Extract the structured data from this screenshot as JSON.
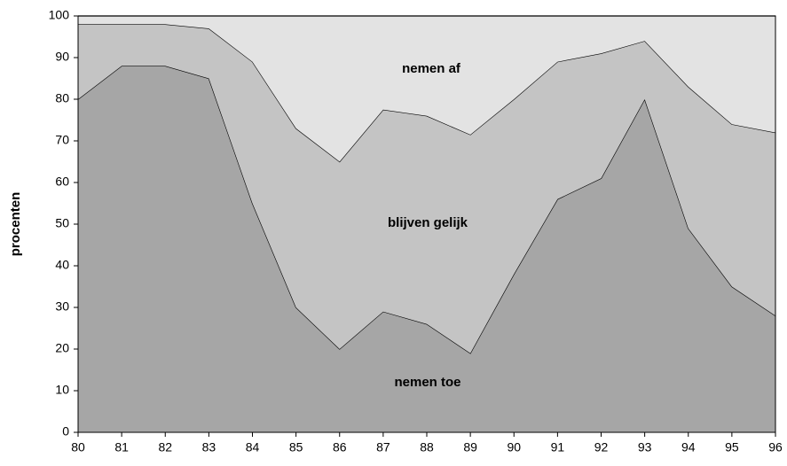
{
  "chart_data": {
    "type": "stacked_area",
    "y_label": "procenten",
    "categories": [
      "80",
      "81",
      "82",
      "83",
      "84",
      "85",
      "86",
      "87",
      "88",
      "89",
      "90",
      "91",
      "92",
      "93",
      "94",
      "95",
      "96"
    ],
    "series": [
      {
        "name": "nemen toe",
        "color": "#a6a6a6",
        "values": [
          80,
          88,
          88,
          85,
          55,
          30,
          20,
          29,
          26,
          19,
          38,
          56,
          61,
          80,
          49,
          35,
          28
        ]
      },
      {
        "name": "blijven gelijk",
        "color": "#c4c4c4",
        "values": [
          18,
          10,
          10,
          12,
          34,
          43,
          45,
          48.5,
          50,
          52.5,
          42,
          33,
          30,
          14,
          34,
          39,
          44
        ]
      },
      {
        "name": "nemen af",
        "color": "#e3e3e3",
        "values": [
          2,
          2,
          2,
          3,
          11,
          27,
          35,
          22.5,
          24,
          28.5,
          20,
          11,
          9,
          6,
          17,
          26,
          28
        ]
      }
    ],
    "ylim": [
      0,
      100
    ],
    "yticks": [
      0,
      10,
      20,
      30,
      40,
      50,
      60,
      70,
      80,
      90,
      100
    ]
  }
}
